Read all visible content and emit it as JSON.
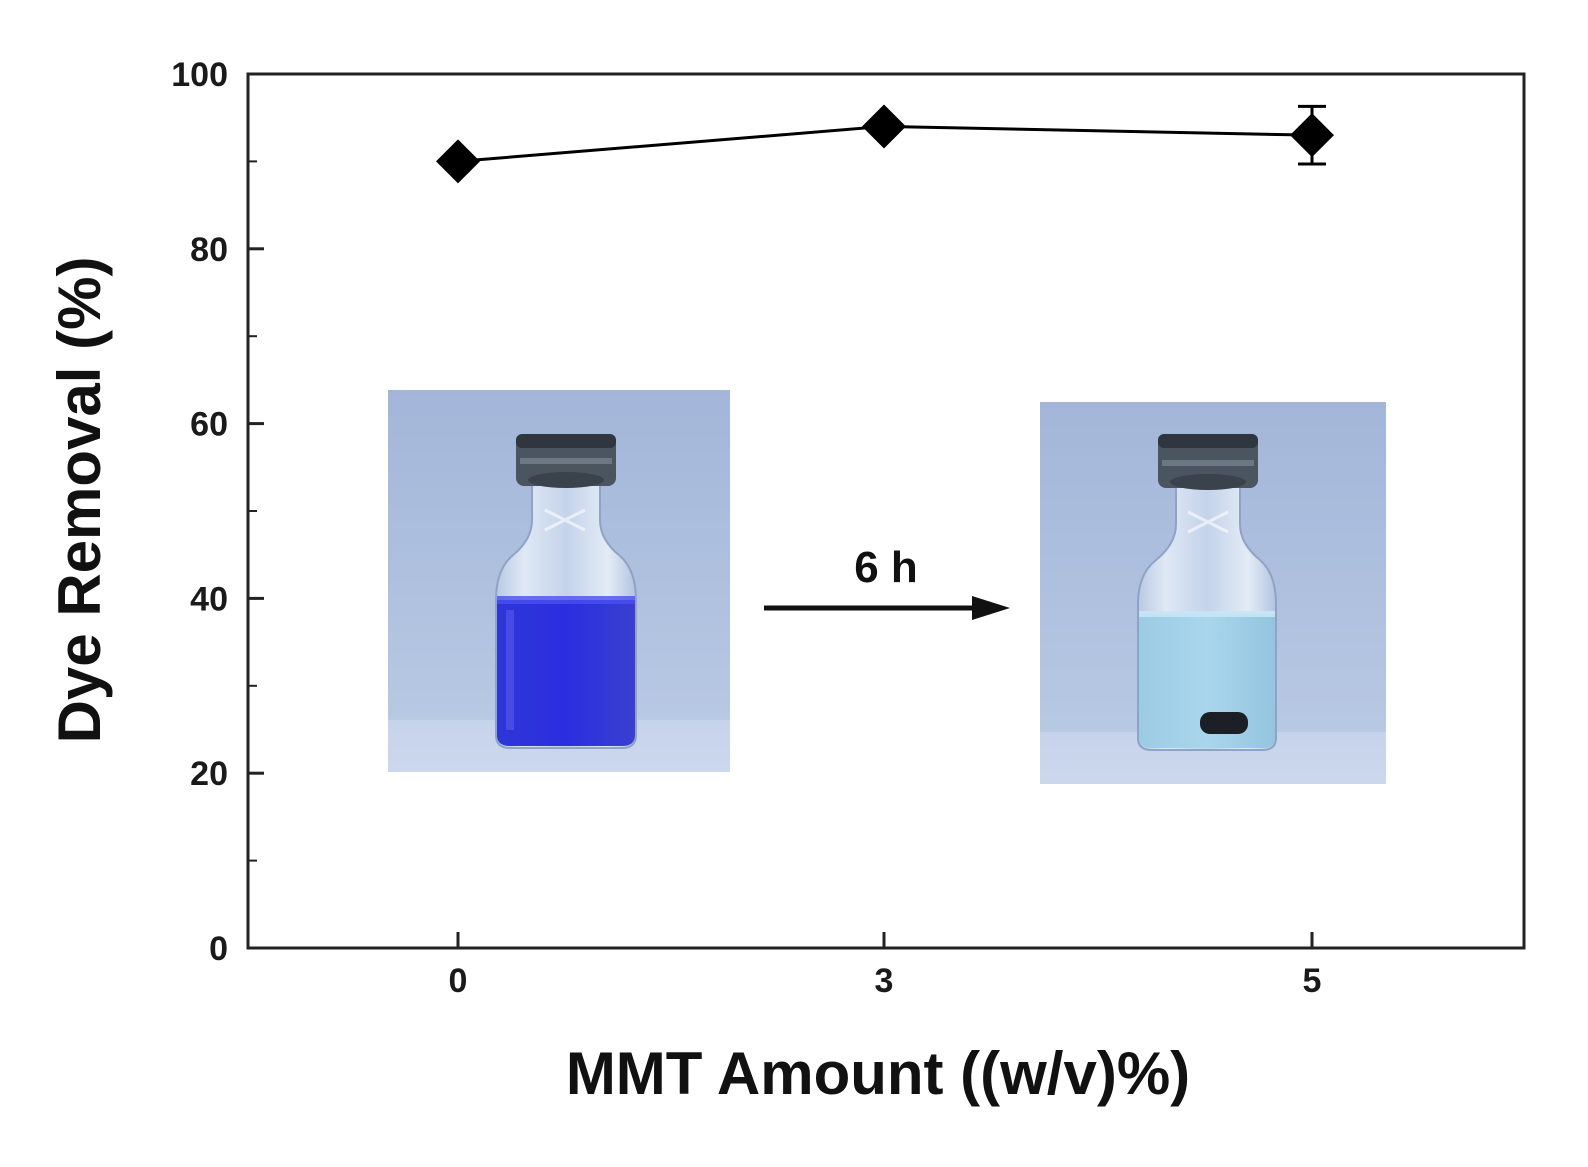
{
  "chart_data": {
    "type": "line",
    "xlabel": "MMT Amount ((w/v)%)",
    "ylabel": "Dye Removal (%)",
    "categories": [
      "0",
      "3",
      "5"
    ],
    "ylim": [
      0,
      100
    ],
    "yticks": [
      "0",
      "20",
      "40",
      "60",
      "80",
      "100"
    ],
    "series": [
      {
        "values": [
          90,
          94,
          93
        ],
        "error": [
          0,
          0,
          3.3
        ],
        "marker": "diamond",
        "color": "#000000"
      }
    ],
    "annotations": {
      "arrow_label": "6 h"
    },
    "grid": false,
    "legend": "none"
  },
  "colors": {
    "dye_before": "#2a2ee0",
    "dye_after": "#9fd0e8",
    "photo_background": "#a9bcdc",
    "bottle_cap": "#4a5560"
  }
}
